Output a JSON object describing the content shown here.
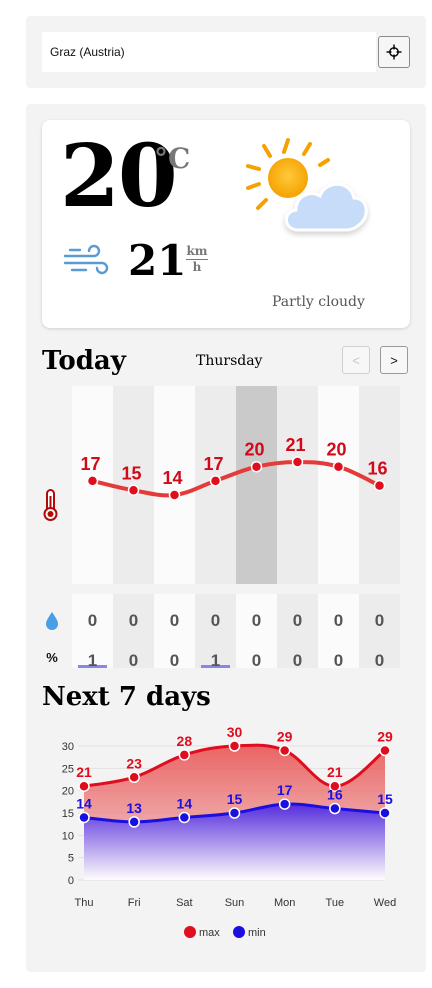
{
  "search": {
    "value": "Graz (Austria)",
    "button_icon": "crosshair-icon"
  },
  "current": {
    "temperature": "20",
    "temperature_unit": "°C",
    "wind_speed": "21",
    "wind_unit_top": "km",
    "wind_unit_bottom": "h",
    "condition": "Partly cloudy",
    "icon": "partly-cloudy-icon"
  },
  "today": {
    "title": "Today",
    "day": "Thursday",
    "prev_label": "<",
    "next_label": ">",
    "highlighted_hour_index": 4,
    "temperatures": [
      17,
      15,
      14,
      17,
      20,
      21,
      20,
      16
    ],
    "precipitation": [
      "0",
      "0",
      "0",
      "0",
      "0",
      "0",
      "0",
      "0"
    ],
    "precip_probability": [
      "1",
      "0",
      "0",
      "1",
      "0",
      "0",
      "0",
      "0"
    ],
    "precip_probability_unit": "%"
  },
  "week": {
    "title": "Next 7 days",
    "legend_max": "max",
    "legend_min": "min"
  },
  "colors": {
    "max": "#e00d1f",
    "min": "#1a0fe0",
    "panel": "#f3f3f3",
    "highlight": "#cacaca"
  },
  "chart_data": {
    "type": "area",
    "categories": [
      "Thu",
      "Fri",
      "Sat",
      "Sun",
      "Mon",
      "Tue",
      "Wed"
    ],
    "series": [
      {
        "name": "max",
        "values": [
          21,
          23,
          28,
          30,
          29,
          21,
          29
        ]
      },
      {
        "name": "min",
        "values": [
          14,
          13,
          14,
          15,
          17,
          16,
          15
        ]
      }
    ],
    "ylim": [
      0,
      30
    ],
    "yticks": [
      0,
      5,
      10,
      15,
      20,
      25,
      30
    ],
    "legend": "bottom",
    "grid": true
  }
}
